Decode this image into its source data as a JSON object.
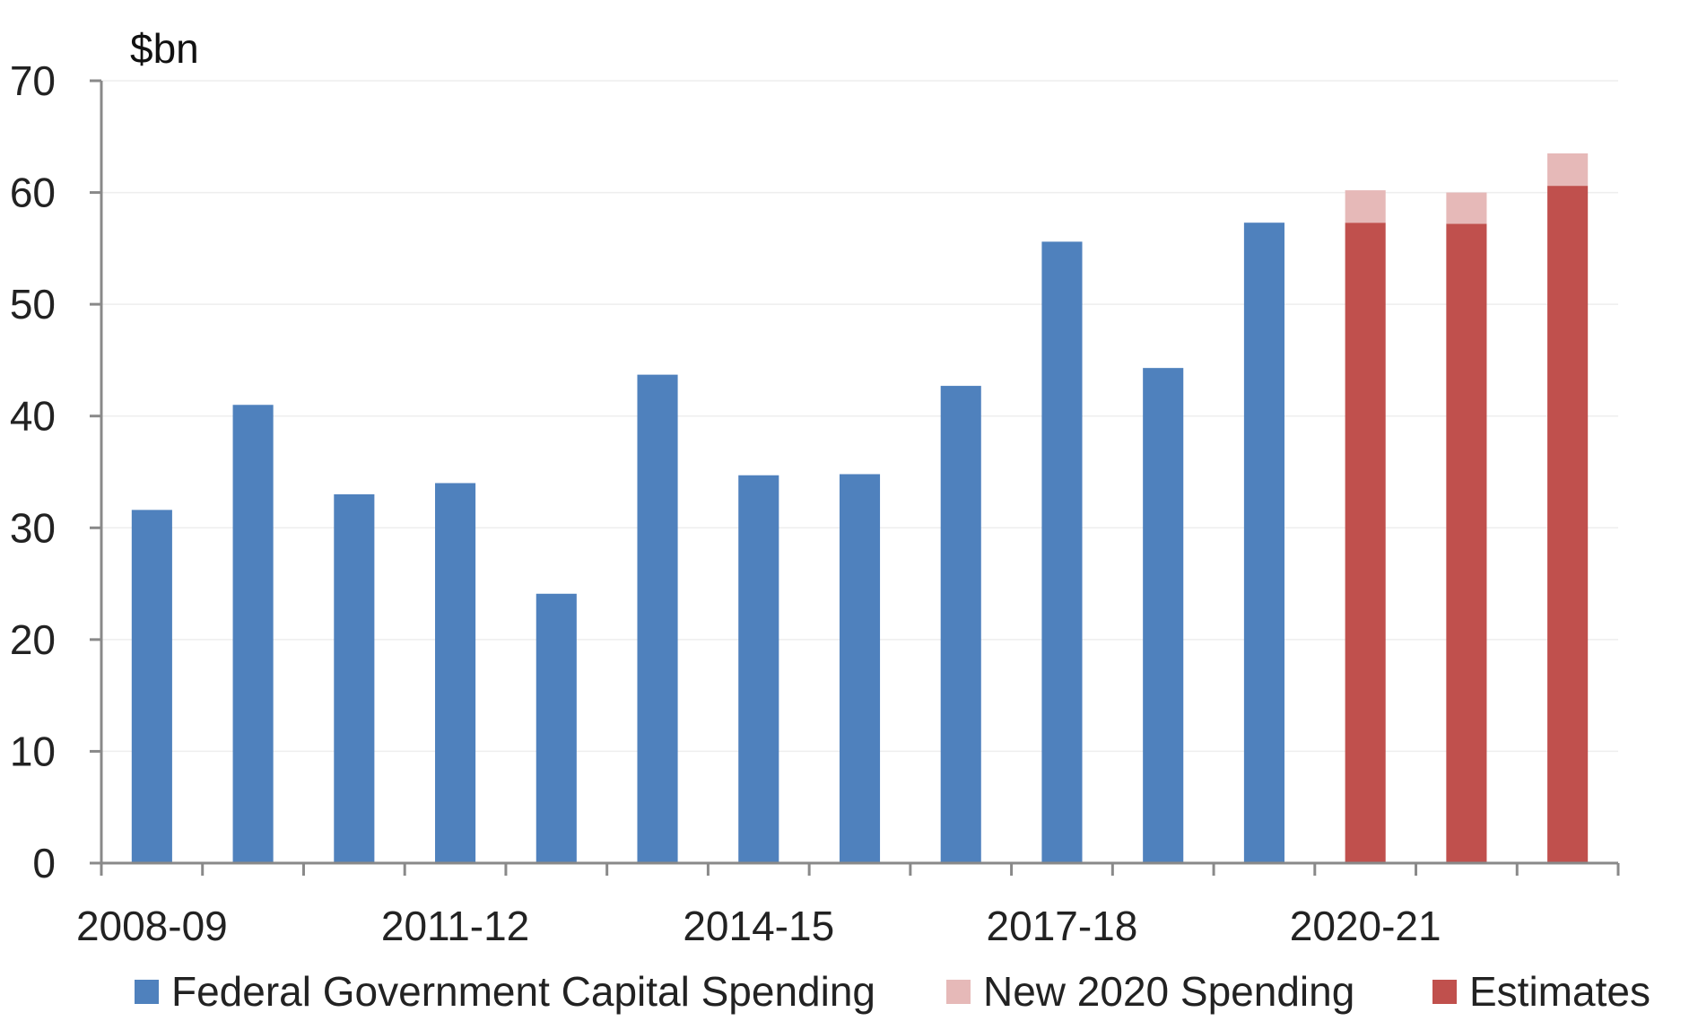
{
  "chart_data": {
    "type": "bar",
    "stacked": true,
    "title": "",
    "unit_label": "$bn",
    "xlabel": "",
    "ylabel": "",
    "ylim": [
      0,
      70
    ],
    "yticks": [
      0,
      10,
      20,
      30,
      40,
      50,
      60,
      70
    ],
    "categories": [
      "2008-09",
      "2009-10",
      "2010-11",
      "2011-12",
      "2012-13",
      "2013-14",
      "2014-15",
      "2015-16",
      "2016-17",
      "2017-18",
      "2018-19",
      "2019-20",
      "2020-21",
      "2021-22",
      "2022-23"
    ],
    "xtick_labels": [
      "2008-09",
      "2011-12",
      "2014-15",
      "2017-18",
      "2020-21"
    ],
    "grid": true,
    "legend_position": "bottom",
    "series": [
      {
        "name": "Federal Government Capital Spending",
        "color": "#4F81BD",
        "values": [
          31.6,
          41.0,
          33.0,
          34.0,
          24.1,
          43.7,
          34.7,
          34.8,
          42.7,
          55.6,
          44.3,
          57.3,
          null,
          null,
          null
        ]
      },
      {
        "name": "Estimates",
        "color": "#C0504D",
        "values": [
          null,
          null,
          null,
          null,
          null,
          null,
          null,
          null,
          null,
          null,
          null,
          null,
          57.3,
          57.2,
          60.6
        ]
      },
      {
        "name": "New 2020 Spending",
        "color": "#E6B9B8",
        "values": [
          null,
          null,
          null,
          null,
          null,
          null,
          null,
          null,
          null,
          null,
          null,
          null,
          2.9,
          2.8,
          2.9
        ]
      }
    ],
    "legend": [
      {
        "name": "Federal Government Capital Spending",
        "color": "#4F81BD"
      },
      {
        "name": "New 2020 Spending",
        "color": "#E6B9B8"
      },
      {
        "name": "Estimates",
        "color": "#C0504D"
      }
    ]
  }
}
